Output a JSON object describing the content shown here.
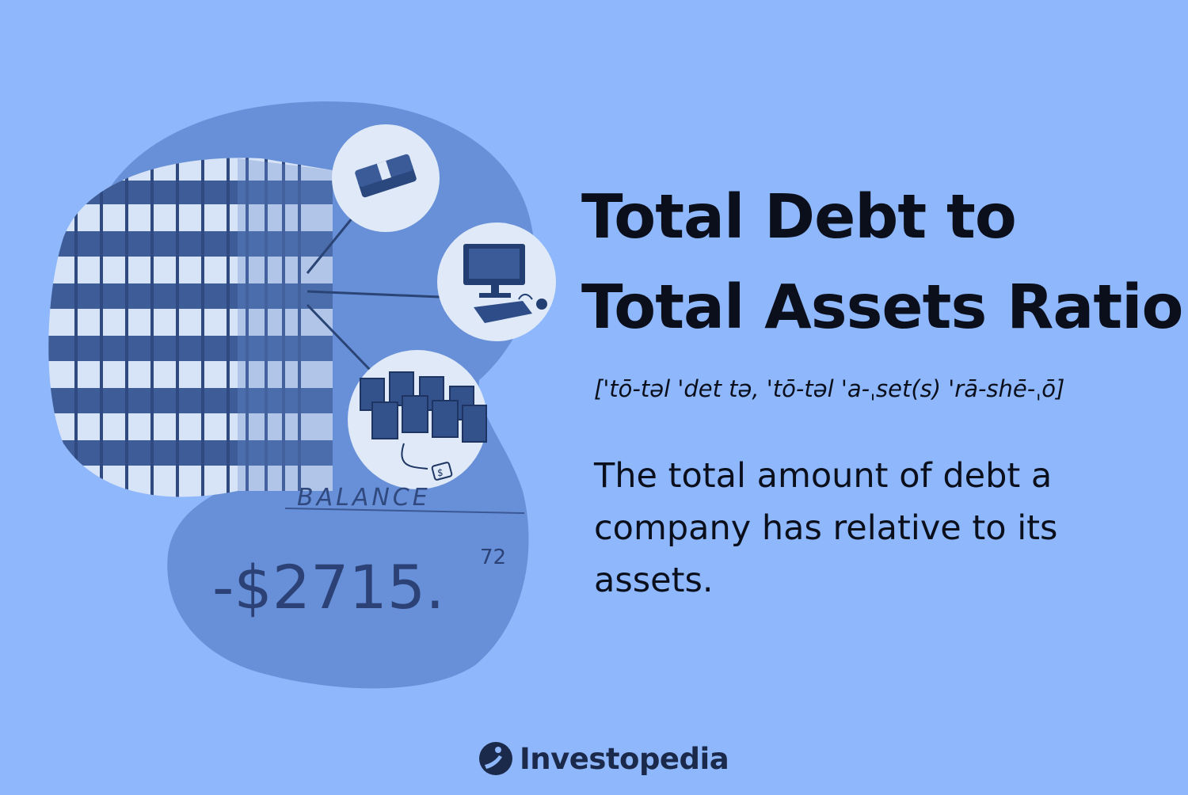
{
  "headline": {
    "line1": "Total Debt to",
    "line2": "Total Assets Ratio"
  },
  "pronunciation": "['tō-təl 'det tə, 'tō-təl 'a-ˌset(s) 'rā-shē-ˌō]",
  "definition": "The total amount of debt a company has relative to its assets.",
  "illustration": {
    "balance_label": "BALANCE",
    "balance_amount": "-$2715.",
    "balance_cents": "72",
    "tag_symbol": "$"
  },
  "brand": {
    "name": "Investopedia"
  },
  "colors": {
    "background": "#8eb7fc",
    "blob": "#6890d8",
    "text": "#0b0f1c"
  }
}
